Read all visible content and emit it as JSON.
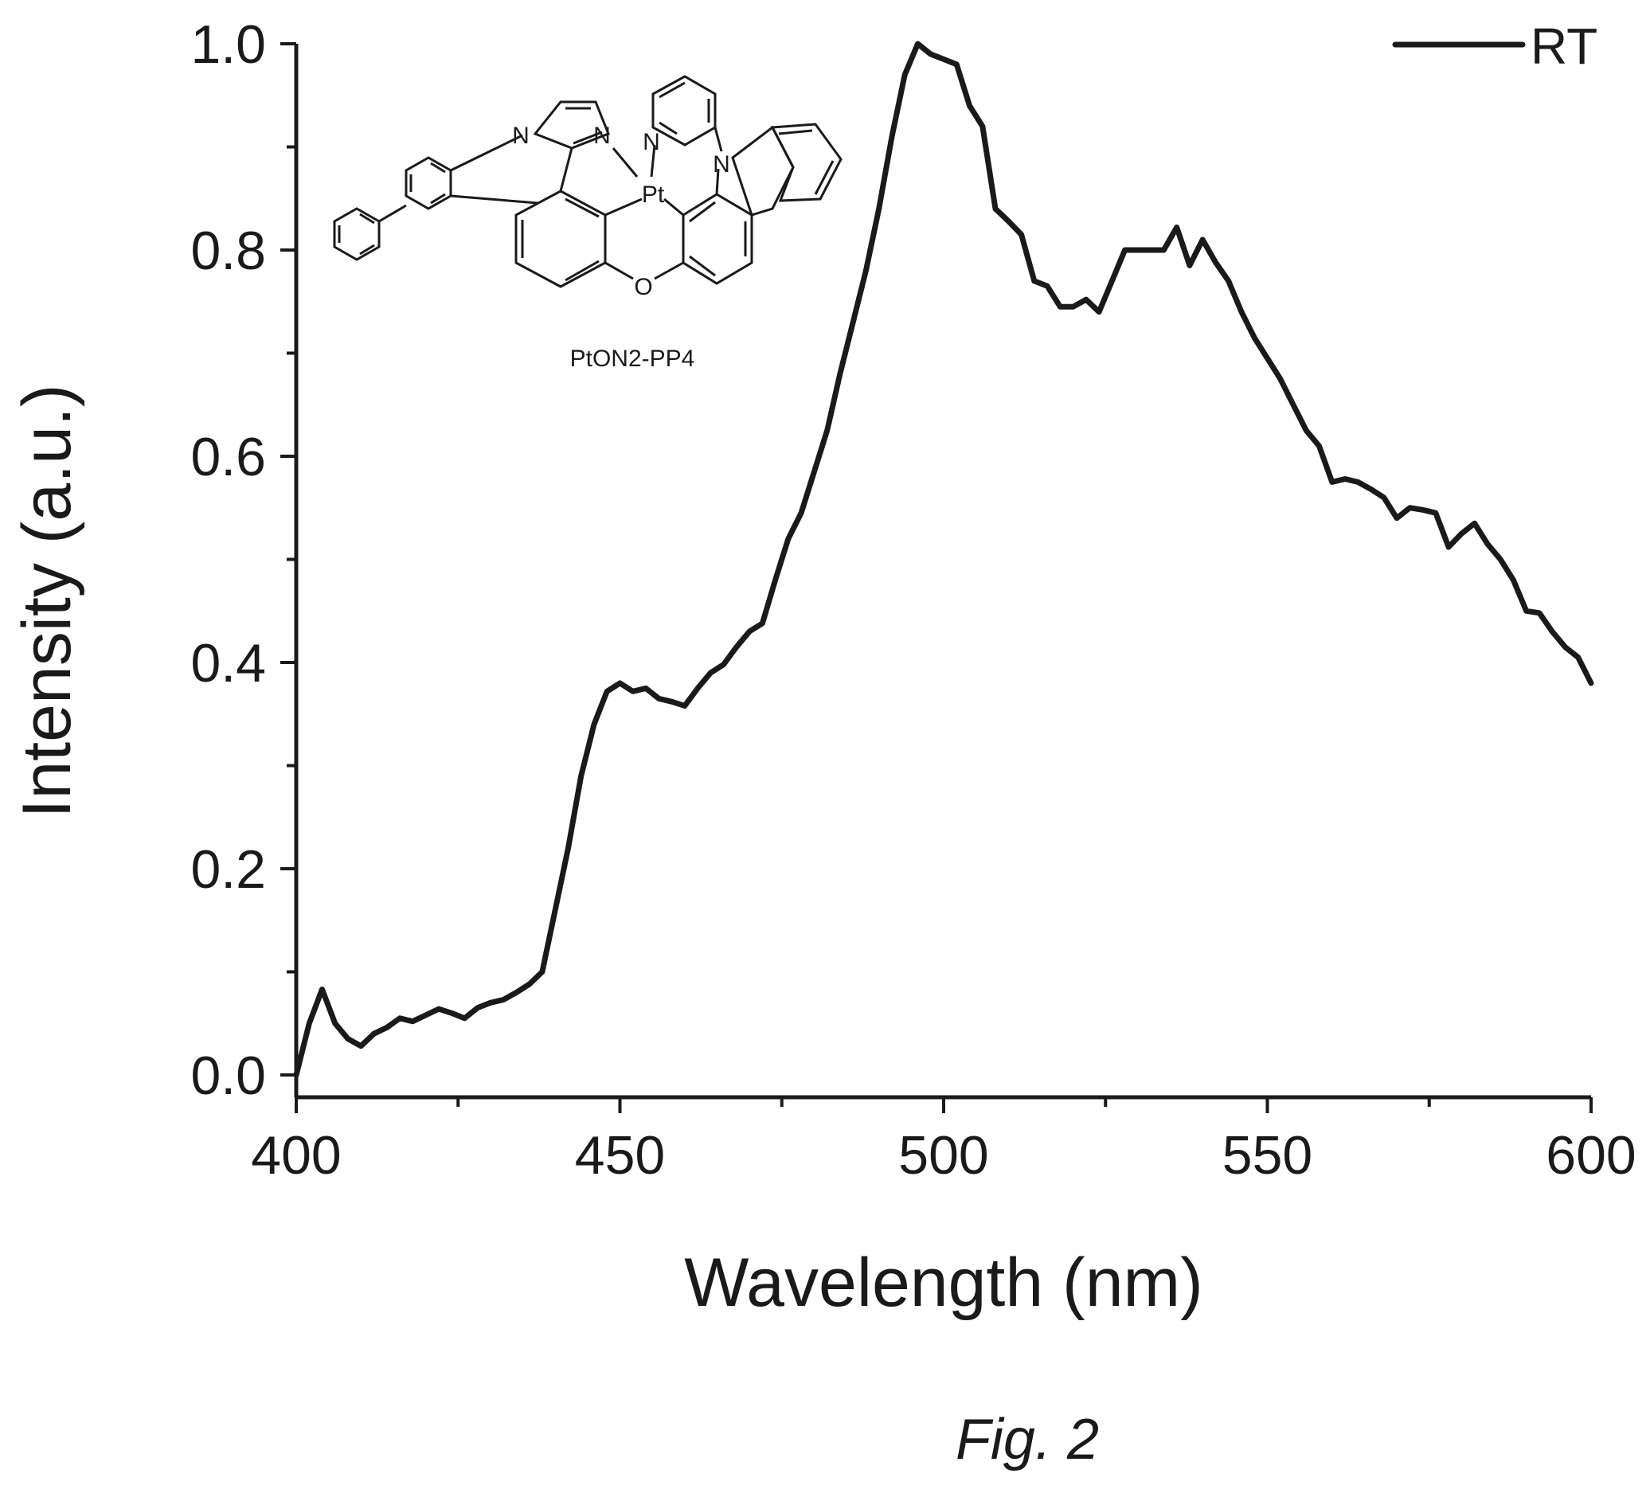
{
  "chart_data": {
    "type": "line",
    "xlabel": "Wavelength (nm)",
    "ylabel": "Intensity (a.u.)",
    "xlim": [
      400,
      600
    ],
    "ylim": [
      0.0,
      1.0
    ],
    "x_ticks": [
      "400",
      "450",
      "500",
      "550",
      "600"
    ],
    "y_ticks": [
      "0.0",
      "0.2",
      "0.4",
      "0.6",
      "0.8",
      "1.0"
    ],
    "grid": false,
    "legend_placement": "top-right",
    "series": [
      {
        "name": "RT",
        "color": "#1a1a1a",
        "x": [
          400,
          402,
          404,
          406,
          408,
          410,
          412,
          414,
          416,
          418,
          420,
          422,
          424,
          426,
          428,
          430,
          432,
          434,
          436,
          438,
          440,
          442,
          444,
          446,
          448,
          450,
          452,
          454,
          456,
          458,
          460,
          462,
          464,
          466,
          468,
          470,
          472,
          474,
          476,
          478,
          480,
          482,
          484,
          486,
          488,
          490,
          492,
          494,
          496,
          498,
          500,
          502,
          504,
          506,
          508,
          510,
          512,
          514,
          516,
          518,
          520,
          522,
          524,
          526,
          528,
          530,
          532,
          534,
          536,
          538,
          540,
          542,
          544,
          546,
          548,
          550,
          552,
          554,
          556,
          558,
          560,
          562,
          564,
          566,
          568,
          570,
          572,
          574,
          576,
          578,
          580,
          582,
          584,
          586,
          588,
          590,
          592,
          594,
          596,
          598,
          600
        ],
        "values": [
          0.0,
          0.05,
          0.083,
          0.05,
          0.035,
          0.028,
          0.04,
          0.046,
          0.055,
          0.052,
          0.058,
          0.064,
          0.06,
          0.055,
          0.065,
          0.07,
          0.073,
          0.08,
          0.088,
          0.1,
          0.16,
          0.22,
          0.29,
          0.34,
          0.372,
          0.38,
          0.372,
          0.375,
          0.365,
          0.362,
          0.358,
          0.375,
          0.39,
          0.398,
          0.415,
          0.43,
          0.438,
          0.48,
          0.52,
          0.545,
          0.585,
          0.625,
          0.68,
          0.73,
          0.78,
          0.84,
          0.91,
          0.97,
          1.0,
          0.99,
          0.985,
          0.98,
          0.94,
          0.92,
          0.84,
          0.828,
          0.815,
          0.77,
          0.765,
          0.745,
          0.745,
          0.752,
          0.74,
          0.77,
          0.8,
          0.8,
          0.8,
          0.8,
          0.822,
          0.785,
          0.81,
          0.788,
          0.77,
          0.74,
          0.715,
          0.695,
          0.675,
          0.65,
          0.625,
          0.61,
          0.575,
          0.578,
          0.575,
          0.568,
          0.56,
          0.54,
          0.55,
          0.548,
          0.545,
          0.512,
          0.525,
          0.535,
          0.515,
          0.5,
          0.48,
          0.45,
          0.448,
          0.43,
          0.415,
          0.405,
          0.38
        ]
      }
    ]
  },
  "inset": {
    "compound_name": "PtON2-PP4",
    "atoms": {
      "n_imidazole_left": "N",
      "n_imidazole_right": "N",
      "n_pyridine": "N",
      "n_carbazole": "N",
      "metal": "Pt",
      "oxygen": "O"
    }
  },
  "caption": "Fig. 2"
}
